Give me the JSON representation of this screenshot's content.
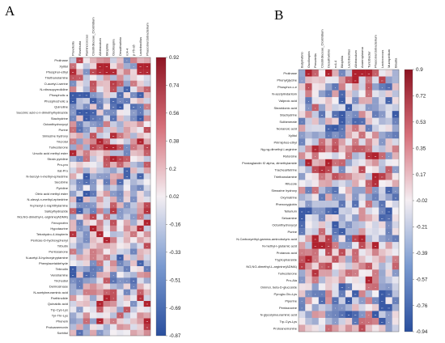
{
  "chart_data": [
    {
      "type": "heatmap",
      "panel_label": "A",
      "columns": [
        "Prevotella",
        "Roseburia",
        "Ruminococcus",
        "Clostridiaceae_Clostridium",
        "Allobaculum",
        "Bilophila",
        "Oscillospira",
        "Desulfovibrio",
        "rc4-4",
        "p-75-a5",
        "Lactobacillus",
        "Phascolarctobacterium"
      ],
      "rows": [
        "Prolinase",
        "Xylitol",
        "Phosphor-ethyl",
        "Triethanolamine",
        "O-acetyl-l-serine",
        "N-nitrosopyrrolidine",
        "Phospholic a",
        "Phosphocholic a",
        "Quinoline",
        "Succinic acid-c-n-dimethylhydrazide",
        "Stachydrine",
        "Octanthydroxycyl",
        "Purine",
        "Simazine hydroxy",
        "Tricrotol",
        "Turkesterone",
        "Ursolic acid methyl ester",
        "Strain pyridine",
        "Pro-pro",
        "Ilat-Pro",
        "N-benzyl-n-methyl-ephedrine",
        "Secobine",
        "Pyridine",
        "Oleic acid methyl ester",
        "N-oleoyl-n-methyl-ephedrine",
        "N-phenyl-1-naphthylamine",
        "Salicylhydrazide",
        "NG,NG-dimethyl-L-arginine(ADMA)",
        "Fenoprofen",
        "Hypotaurine",
        "Tetrahydro-4-biopterin",
        "Pentose-D-hydroxyphenyl",
        "Tributin",
        "Pentosanone",
        "N-acetyl-5-hydroxytryptamine",
        "Phenylacetaldehyde",
        "Tebrodin",
        "Veratramine",
        "Trichodiol",
        "Deimosinase",
        "N-acetylneuraminic acid",
        "Parthinolide",
        "Quinaldic acid",
        "Trp-Cys-Lys",
        "Tyr-Thr-Lys",
        "Phenein",
        "Protoanemonin",
        "Sorbitol"
      ],
      "colorbar_ticks": [
        "0.92",
        "0.74",
        "0.56",
        "0.38",
        "0.2",
        "0.02",
        "-0.16",
        "-0.33",
        "-0.51",
        "-0.69",
        "-0.87"
      ],
      "value_range": [
        -0.87,
        0.92
      ],
      "colors": {
        "low": "#3a5aa6",
        "mid": "#f4f0f4",
        "high": "#b0222e"
      }
    },
    {
      "type": "heatmap",
      "panel_label": "B",
      "columns": [
        "Butyrivibrio",
        "Oscillospira",
        "Prevotella",
        "Clostridiaceae_Clostridium",
        "Desulfovibrio",
        "rc4-4",
        "Bilophila",
        "Lactobacillus",
        "Allobaculum",
        "Anaeroplasma",
        "Turicibacter",
        "Phascolarctobacterium",
        "Lactococcus",
        "Mucispirillum",
        "Blautia"
      ],
      "rows": [
        "Prolinase",
        "Phenylglycine",
        "Phosphor-c-e",
        "N-acetylindantoin",
        "Valproic acid",
        "Stearidonic acid",
        "Stachydrine",
        "Sulfamerate",
        "Nonanoic acid",
        "Xylitol",
        "Pirimiphos-ethyl",
        "Ng,ng-dimethyl-l-arginine",
        "Retorsine",
        "Prostaglandin f2 alpha, dimethylamide",
        "Tracheal/tetrine",
        "Triethanolamine",
        "Ritucole",
        "Simazine hydroxy",
        "Oxymatrine",
        "Phenoxyglobin",
        "Tellurium",
        "Seluamine",
        "Octanthydroxycyl",
        "Purine",
        "N-Carboxyethyl-gamma-aminobutyric acid",
        "N-methyl-l-glutamic acid",
        "Protanoic acid",
        "Tryptophanside",
        "NG,NG-dimethyl-L-arginine(ADMA)",
        "Turkesterone",
        "Pro-Ala",
        "Onimol, beta-D-glucoside",
        "Pyroglu-Glu-Lys",
        "Piperine",
        "Pentazocine",
        "N-glycolylneuraminic acid",
        "Trp-Cys-Lys",
        "Protoanemonine"
      ],
      "colorbar_ticks": [
        "0.9",
        "0.72",
        "0.53",
        "0.35",
        "0.17",
        "-0.02",
        "-0.21",
        "-0.39",
        "-0.57",
        "-0.76",
        "-0.94"
      ],
      "value_range": [
        -0.94,
        0.9
      ],
      "colors": {
        "low": "#3a5aa6",
        "mid": "#f4f0f4",
        "high": "#b0222e"
      }
    }
  ]
}
